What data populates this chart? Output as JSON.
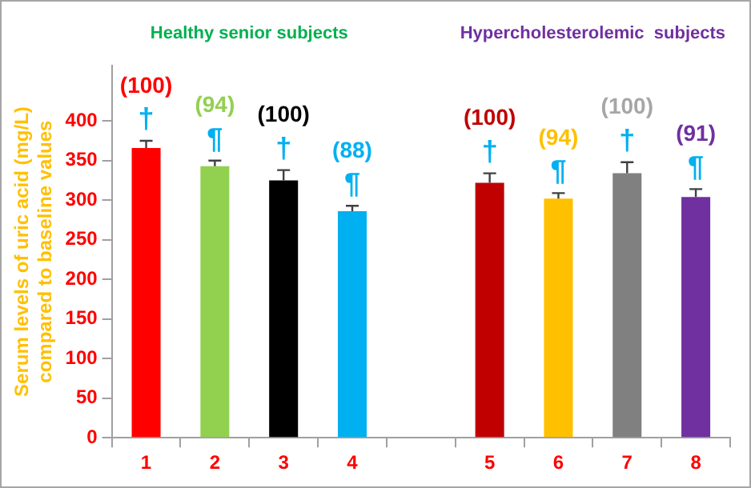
{
  "chart_data": {
    "type": "bar",
    "ylabel": "Serum levels of uric acid (mg/L)\ncompared to baseline values",
    "categories": [
      "1",
      "2",
      "3",
      "4",
      null,
      "5",
      "6",
      "7",
      "8"
    ],
    "values": [
      366,
      343,
      325,
      286,
      null,
      322,
      302,
      334,
      304
    ],
    "errors": [
      9,
      7,
      13,
      7,
      null,
      12,
      7,
      14,
      10
    ],
    "colors": [
      "#ff0000",
      "#92d050",
      "#000000",
      "#00b0f0",
      "#ffffff",
      "#c00000",
      "#ffc000",
      "#808080",
      "#7030a0"
    ],
    "ylim": [
      0,
      470
    ],
    "yticks": [
      0,
      50,
      100,
      150,
      200,
      250,
      300,
      350,
      400
    ],
    "grid": false,
    "legend": false,
    "annotations": [
      "Healthy senior subjects",
      "Hypercholesterolemic  subjects",
      "(100)",
      "†",
      "(94)",
      "¶",
      "(100)",
      "†",
      "(88)",
      "¶",
      "(100)",
      "†",
      "(94)",
      "¶",
      "(100)",
      "†",
      "(91)",
      "¶"
    ]
  }
}
